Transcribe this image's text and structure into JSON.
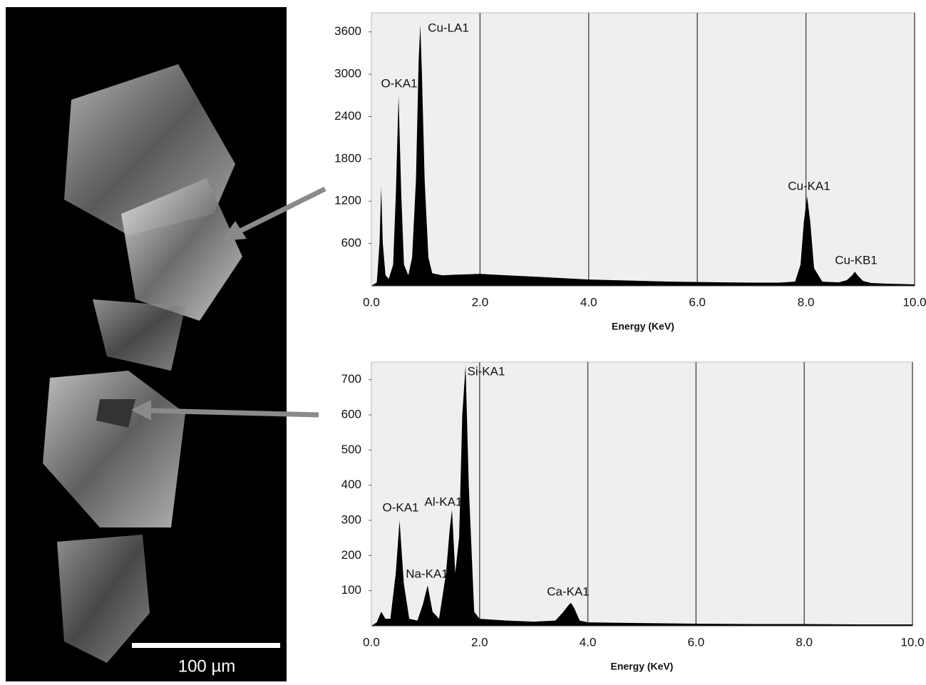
{
  "image": {
    "scale_label": "100 µm"
  },
  "chart_data": [
    {
      "type": "area",
      "color": "#000000",
      "x_label": "Energy (KeV)",
      "x": [
        0,
        0.1,
        0.15,
        0.18,
        0.21,
        0.26,
        0.32,
        0.4,
        0.45,
        0.5,
        0.55,
        0.6,
        0.68,
        0.75,
        0.82,
        0.87,
        0.9,
        0.93,
        0.98,
        1.05,
        1.12,
        1.3,
        1.6,
        2.0,
        2.5,
        3.0,
        3.5,
        4.0,
        4.5,
        5.0,
        5.5,
        6.0,
        6.5,
        7.0,
        7.5,
        7.8,
        7.9,
        7.96,
        8.02,
        8.08,
        8.15,
        8.3,
        8.6,
        8.75,
        8.85,
        8.9,
        8.95,
        9.05,
        9.2,
        9.5,
        10.0
      ],
      "values": [
        0,
        50,
        600,
        1400,
        600,
        150,
        100,
        300,
        1300,
        2700,
        1300,
        300,
        150,
        400,
        1500,
        3200,
        3700,
        3000,
        1500,
        400,
        180,
        150,
        160,
        170,
        150,
        130,
        110,
        90,
        80,
        70,
        60,
        55,
        50,
        45,
        45,
        60,
        300,
        900,
        1270,
        900,
        250,
        60,
        50,
        80,
        150,
        200,
        150,
        70,
        40,
        30,
        20
      ],
      "xlim": [
        0,
        10
      ],
      "ylim": [
        0,
        3870
      ],
      "xticks": [
        {
          "value": 0,
          "label": "0.0"
        },
        {
          "value": 2,
          "label": "2.0"
        },
        {
          "value": 4,
          "label": "4.0"
        },
        {
          "value": 6,
          "label": "6.0"
        },
        {
          "value": 8,
          "label": "8.0"
        },
        {
          "value": 10,
          "label": "10.0"
        }
      ],
      "yticks": [
        600,
        1200,
        1800,
        2400,
        3000,
        3600
      ],
      "annotations": [
        "O-KA1",
        "Cu-LA1",
        "Cu-KA1",
        "Cu-KB1"
      ]
    },
    {
      "type": "area",
      "color": "#000000",
      "x_label": "Energy (KeV)",
      "x": [
        0,
        0.1,
        0.18,
        0.26,
        0.35,
        0.45,
        0.52,
        0.6,
        0.7,
        0.85,
        0.95,
        1.04,
        1.13,
        1.25,
        1.38,
        1.45,
        1.49,
        1.55,
        1.62,
        1.68,
        1.74,
        1.8,
        1.9,
        2.0,
        2.5,
        3.0,
        3.4,
        3.55,
        3.65,
        3.69,
        3.75,
        3.85,
        4.0,
        5.0,
        6.0,
        7.0,
        8.0,
        9.0,
        10.0
      ],
      "values": [
        0,
        10,
        40,
        20,
        20,
        150,
        300,
        120,
        20,
        15,
        60,
        115,
        40,
        20,
        150,
        280,
        330,
        150,
        250,
        600,
        740,
        400,
        40,
        20,
        15,
        12,
        15,
        40,
        60,
        65,
        50,
        15,
        10,
        8,
        6,
        5,
        5,
        4,
        4
      ],
      "xlim": [
        0,
        10
      ],
      "ylim": [
        0,
        750
      ],
      "xticks": [
        {
          "value": 0,
          "label": "0.0"
        },
        {
          "value": 2,
          "label": "2.0"
        },
        {
          "value": 4,
          "label": "4.0"
        },
        {
          "value": 6,
          "label": "6.0"
        },
        {
          "value": 8,
          "label": "8.0"
        },
        {
          "value": 10,
          "label": "10.0"
        }
      ],
      "yticks": [
        100,
        200,
        300,
        400,
        500,
        600,
        700
      ],
      "annotations": [
        "O-KA1",
        "Na-KA1",
        "Al-KA1",
        "Si-KA1",
        "Ca-KA1"
      ]
    }
  ]
}
